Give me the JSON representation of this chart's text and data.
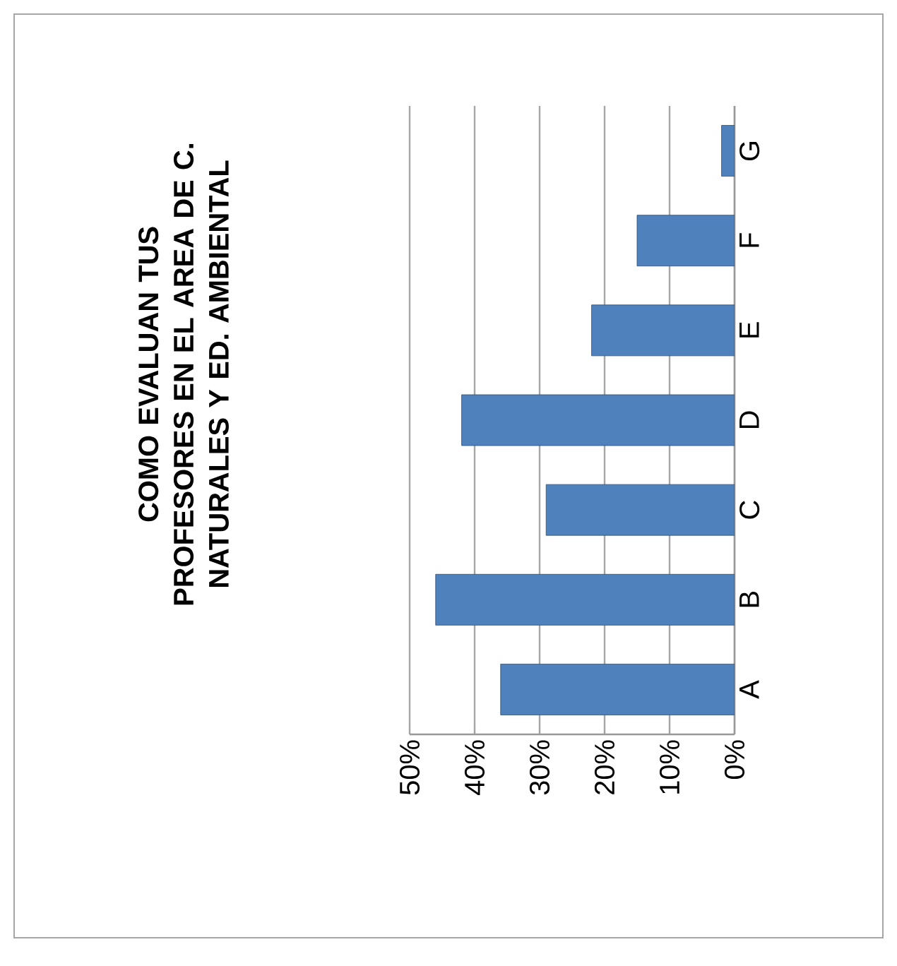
{
  "chart_data": {
    "type": "bar",
    "orientation": "horizontal",
    "title": "COMO EVALUAN TUS PROFESORES EN EL AREA DE C. NATURALES Y ED. AMBIENTAL",
    "categories": [
      "G",
      "F",
      "E",
      "D",
      "C",
      "B",
      "A"
    ],
    "values": [
      0.02,
      0.15,
      0.22,
      0.42,
      0.29,
      0.46,
      0.36
    ],
    "color": "#4f81bd",
    "xlim": [
      0.5,
      0
    ],
    "xticks": [
      {
        "value": 0.5,
        "label": "50%"
      },
      {
        "value": 0.4,
        "label": "40%"
      },
      {
        "value": 0.3,
        "label": "30%"
      },
      {
        "value": 0.2,
        "label": "20%"
      },
      {
        "value": 0.1,
        "label": "10%"
      },
      {
        "value": 0,
        "label": "0%"
      }
    ],
    "grid": "x"
  }
}
